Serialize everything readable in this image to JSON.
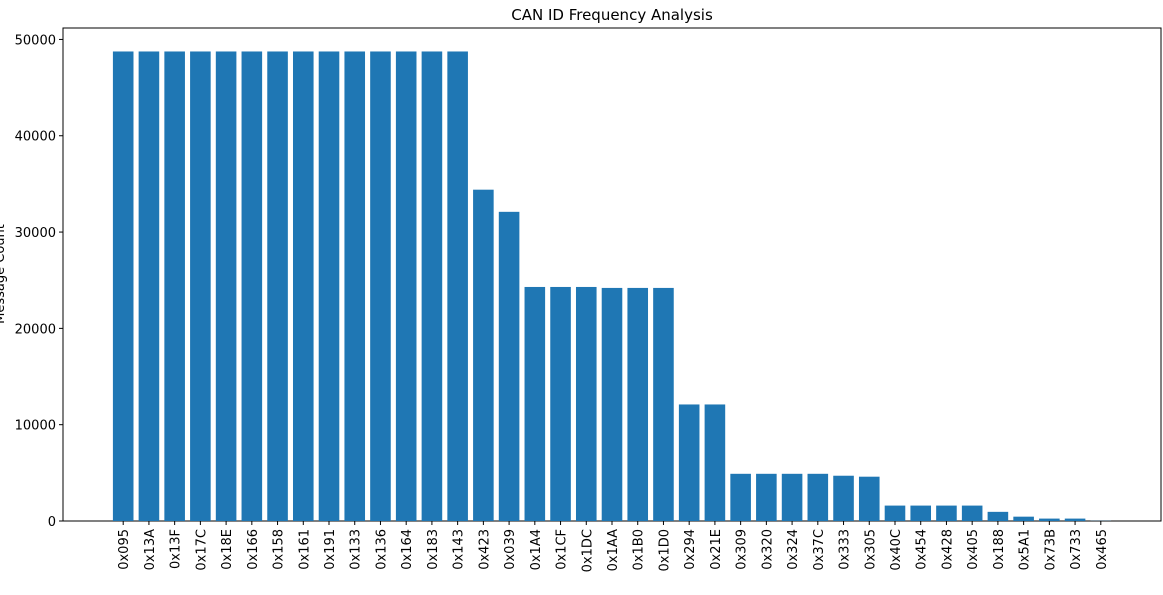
{
  "chart_data": {
    "type": "bar",
    "title": "CAN ID Frequency Analysis",
    "y_label": "Message Count",
    "categories": [
      "0x095",
      "0x13A",
      "0x13F",
      "0x17C",
      "0x18E",
      "0x166",
      "0x158",
      "0x161",
      "0x191",
      "0x133",
      "0x136",
      "0x164",
      "0x183",
      "0x143",
      "0x423",
      "0x039",
      "0x1A4",
      "0x1CF",
      "0x1DC",
      "0x1AA",
      "0x1B0",
      "0x1D0",
      "0x294",
      "0x21E",
      "0x309",
      "0x320",
      "0x324",
      "0x37C",
      "0x333",
      "0x305",
      "0x40C",
      "0x454",
      "0x428",
      "0x405",
      "0x188",
      "0x5A1",
      "0x73B",
      "0x733",
      "0x465"
    ],
    "values": [
      48750,
      48750,
      48750,
      48750,
      48750,
      48750,
      48750,
      48750,
      48750,
      48750,
      48750,
      48750,
      48750,
      48750,
      34400,
      32100,
      24300,
      24300,
      24300,
      24200,
      24200,
      24200,
      12100,
      12100,
      4900,
      4900,
      4900,
      4900,
      4700,
      4600,
      1600,
      1600,
      1600,
      1600,
      950,
      450,
      250,
      250,
      20
    ],
    "color": "#1f77b4",
    "ylim": [
      0,
      51187.5
    ],
    "yticks": [
      0,
      10000,
      20000,
      30000,
      40000,
      50000
    ],
    "grid": false
  }
}
